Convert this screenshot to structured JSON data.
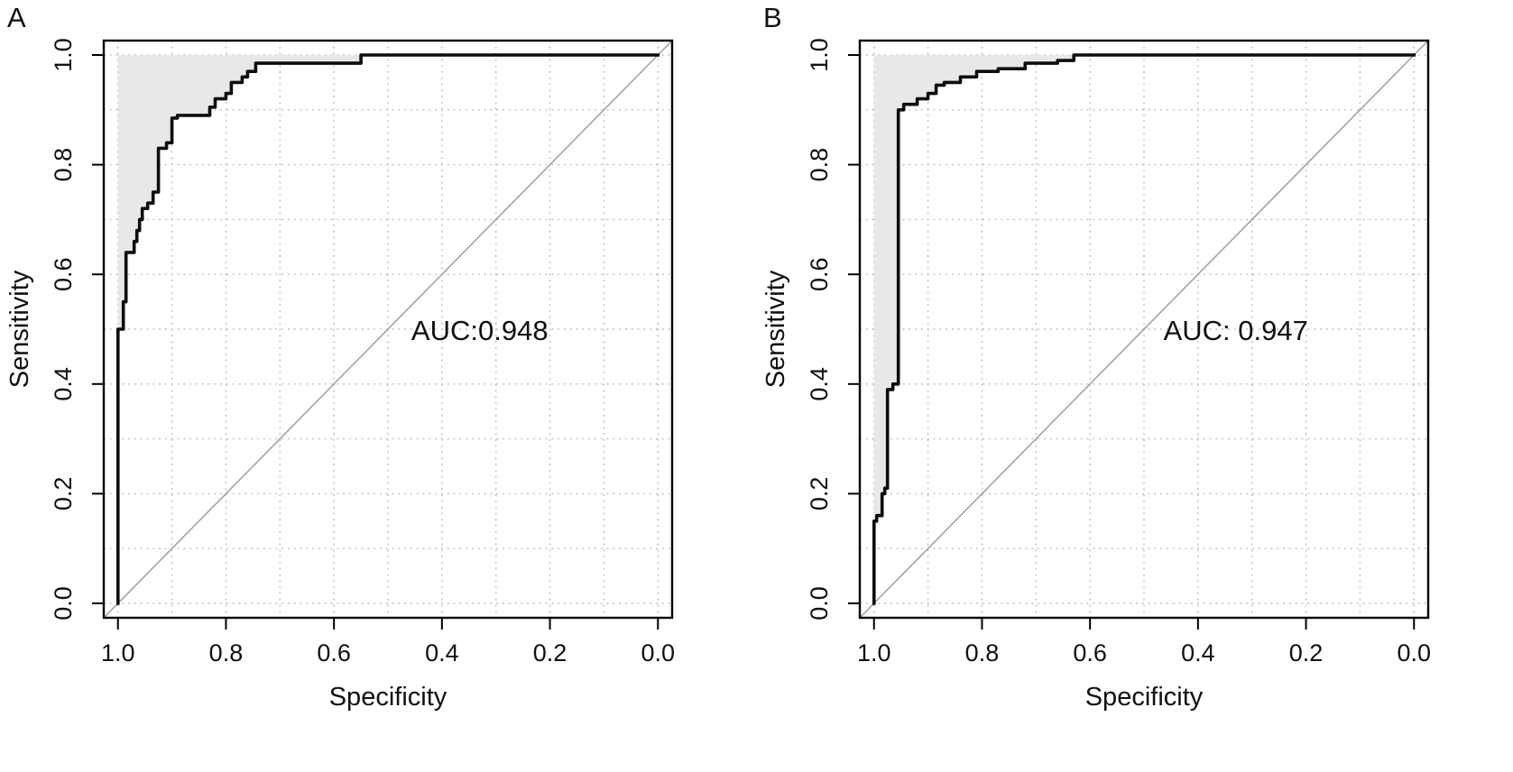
{
  "page": {
    "background": "#ffffff"
  },
  "colors": {
    "curve": "#0d0d0d",
    "shading": "#e8e8e8",
    "diagonal": "#a3a3a3",
    "grid": "#b9b9b9",
    "border": "#000000"
  },
  "chart_data": [
    {
      "type": "line",
      "subtype": "roc-curve",
      "panel_label": "A",
      "title": "",
      "xlabel": "Specificity",
      "ylabel": "Sensitivity",
      "x_axis_reversed": true,
      "xlim": [
        1.0,
        0.0
      ],
      "ylim": [
        0.0,
        1.0
      ],
      "x_ticks": [
        1.0,
        0.8,
        0.6,
        0.4,
        0.2,
        0.0
      ],
      "y_ticks": [
        0.0,
        0.2,
        0.4,
        0.6,
        0.8,
        1.0
      ],
      "grid": true,
      "grid_interval": 0.1,
      "diagonal_reference": [
        [
          1.0,
          0.0
        ],
        [
          0.0,
          1.0
        ]
      ],
      "auc": 0.948,
      "annotation": {
        "text": "AUC:0.948",
        "x": 0.33,
        "y": 0.48
      },
      "series": [
        {
          "name": "ROC curve (A)",
          "points": [
            [
              1.0,
              0.0
            ],
            [
              1.0,
              0.5
            ],
            [
              0.99,
              0.5
            ],
            [
              0.99,
              0.55
            ],
            [
              0.985,
              0.55
            ],
            [
              0.985,
              0.64
            ],
            [
              0.97,
              0.64
            ],
            [
              0.97,
              0.66
            ],
            [
              0.965,
              0.66
            ],
            [
              0.965,
              0.68
            ],
            [
              0.96,
              0.68
            ],
            [
              0.96,
              0.7
            ],
            [
              0.955,
              0.7
            ],
            [
              0.955,
              0.72
            ],
            [
              0.945,
              0.72
            ],
            [
              0.945,
              0.73
            ],
            [
              0.935,
              0.73
            ],
            [
              0.935,
              0.75
            ],
            [
              0.925,
              0.75
            ],
            [
              0.925,
              0.83
            ],
            [
              0.91,
              0.83
            ],
            [
              0.91,
              0.84
            ],
            [
              0.9,
              0.84
            ],
            [
              0.9,
              0.885
            ],
            [
              0.89,
              0.885
            ],
            [
              0.89,
              0.89
            ],
            [
              0.83,
              0.89
            ],
            [
              0.83,
              0.905
            ],
            [
              0.82,
              0.905
            ],
            [
              0.82,
              0.92
            ],
            [
              0.8,
              0.92
            ],
            [
              0.8,
              0.93
            ],
            [
              0.79,
              0.93
            ],
            [
              0.79,
              0.95
            ],
            [
              0.77,
              0.95
            ],
            [
              0.77,
              0.96
            ],
            [
              0.76,
              0.96
            ],
            [
              0.76,
              0.97
            ],
            [
              0.745,
              0.97
            ],
            [
              0.745,
              0.985
            ],
            [
              0.55,
              0.985
            ],
            [
              0.55,
              1.0
            ],
            [
              0.0,
              1.0
            ]
          ]
        }
      ]
    },
    {
      "type": "line",
      "subtype": "roc-curve",
      "panel_label": "B",
      "title": "",
      "xlabel": "Specificity",
      "ylabel": "Sensitivity",
      "x_axis_reversed": true,
      "xlim": [
        1.0,
        0.0
      ],
      "ylim": [
        0.0,
        1.0
      ],
      "x_ticks": [
        1.0,
        0.8,
        0.6,
        0.4,
        0.2,
        0.0
      ],
      "y_ticks": [
        0.0,
        0.2,
        0.4,
        0.6,
        0.8,
        1.0
      ],
      "grid": true,
      "grid_interval": 0.1,
      "diagonal_reference": [
        [
          1.0,
          0.0
        ],
        [
          0.0,
          1.0
        ]
      ],
      "auc": 0.947,
      "annotation": {
        "text": "AUC: 0.947",
        "x": 0.33,
        "y": 0.48
      },
      "series": [
        {
          "name": "ROC curve (B)",
          "points": [
            [
              1.0,
              0.0
            ],
            [
              1.0,
              0.15
            ],
            [
              0.995,
              0.15
            ],
            [
              0.995,
              0.16
            ],
            [
              0.985,
              0.16
            ],
            [
              0.985,
              0.2
            ],
            [
              0.98,
              0.2
            ],
            [
              0.98,
              0.21
            ],
            [
              0.975,
              0.21
            ],
            [
              0.975,
              0.39
            ],
            [
              0.965,
              0.39
            ],
            [
              0.965,
              0.4
            ],
            [
              0.955,
              0.4
            ],
            [
              0.955,
              0.9
            ],
            [
              0.945,
              0.9
            ],
            [
              0.945,
              0.91
            ],
            [
              0.92,
              0.91
            ],
            [
              0.92,
              0.92
            ],
            [
              0.9,
              0.92
            ],
            [
              0.9,
              0.93
            ],
            [
              0.885,
              0.93
            ],
            [
              0.885,
              0.945
            ],
            [
              0.87,
              0.945
            ],
            [
              0.87,
              0.95
            ],
            [
              0.84,
              0.95
            ],
            [
              0.84,
              0.96
            ],
            [
              0.81,
              0.96
            ],
            [
              0.81,
              0.97
            ],
            [
              0.77,
              0.97
            ],
            [
              0.77,
              0.975
            ],
            [
              0.72,
              0.975
            ],
            [
              0.72,
              0.985
            ],
            [
              0.66,
              0.985
            ],
            [
              0.66,
              0.99
            ],
            [
              0.63,
              0.99
            ],
            [
              0.63,
              1.0
            ],
            [
              0.0,
              1.0
            ]
          ]
        }
      ]
    }
  ]
}
